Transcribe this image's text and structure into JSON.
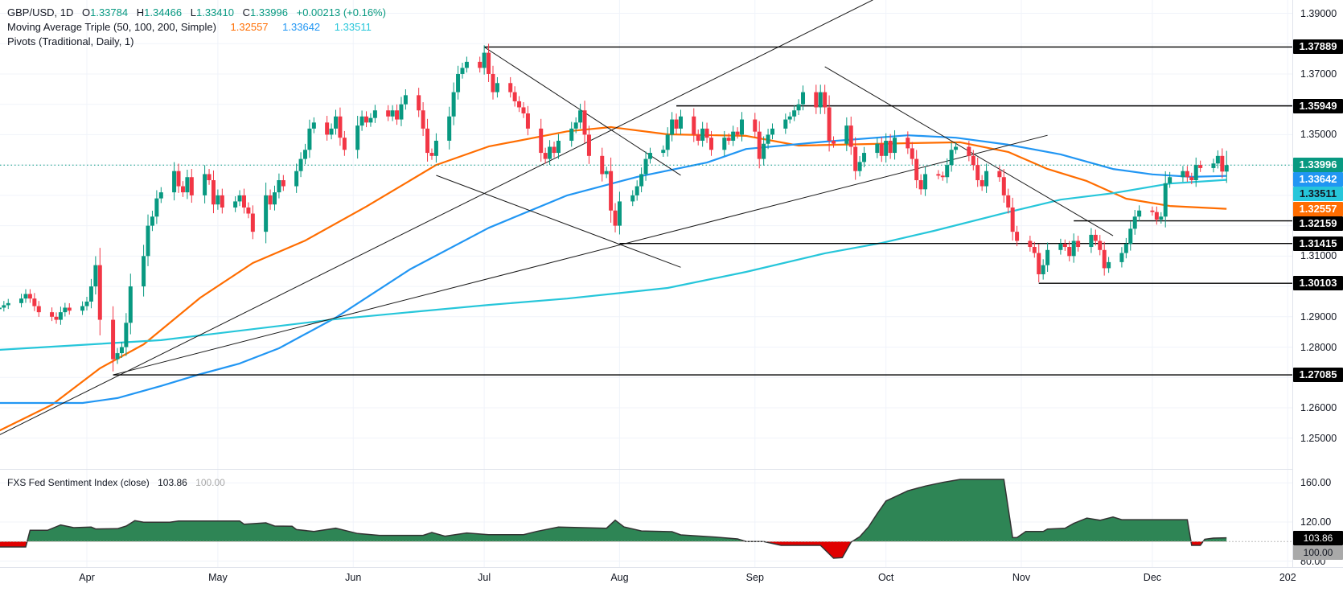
{
  "legend": {
    "symbol": "GBP/USD, 1D",
    "ohlc": [
      {
        "key": "O",
        "value": "1.33784"
      },
      {
        "key": "H",
        "value": "1.34466"
      },
      {
        "key": "L",
        "value": "1.33410"
      },
      {
        "key": "C",
        "value": "1.33996"
      }
    ],
    "change": "+0.00213 (+0.16%)",
    "ma_label": "Moving Average Triple (50, 100, 200, Simple)",
    "ma_values": [
      "1.32557",
      "1.33642",
      "1.33511"
    ],
    "pivots_label": "Pivots (Traditional, Daily, 1)"
  },
  "colors": {
    "up": "#089981",
    "down": "#f23645",
    "ma50": "#ff6d00",
    "ma100": "#2196f3",
    "ma200": "#26c6da",
    "sentiment_up": "#2e8555",
    "sentiment_down": "#e00000"
  },
  "price_axis": {
    "labels": [
      "1.39000",
      "1.37000",
      "1.35000",
      "1.31000",
      "1.29000",
      "1.28000",
      "1.26000",
      "1.25000"
    ],
    "tags": [
      {
        "value": "1.37889",
        "bg": "#000000",
        "fg": "#ffffff"
      },
      {
        "value": "1.35949",
        "bg": "#000000",
        "fg": "#ffffff"
      },
      {
        "value": "1.33996",
        "bg": "#089981",
        "fg": "#ffffff"
      },
      {
        "value": "1.33642",
        "bg": "#2196f3",
        "fg": "#ffffff"
      },
      {
        "value": "1.33511",
        "bg": "#26c6da",
        "fg": "#131722"
      },
      {
        "value": "1.32557",
        "bg": "#ff6d00",
        "fg": "#ffffff"
      },
      {
        "value": "1.32159",
        "bg": "#000000",
        "fg": "#ffffff"
      },
      {
        "value": "1.31415",
        "bg": "#000000",
        "fg": "#ffffff"
      },
      {
        "value": "1.30103",
        "bg": "#000000",
        "fg": "#ffffff"
      },
      {
        "value": "1.27085",
        "bg": "#000000",
        "fg": "#ffffff"
      }
    ]
  },
  "time_axis": [
    {
      "label": "Apr",
      "date": "2025-04-01"
    },
    {
      "label": "May",
      "date": "2025-05-01"
    },
    {
      "label": "Jun",
      "date": "2025-06-01"
    },
    {
      "label": "Jul",
      "date": "2025-07-01"
    },
    {
      "label": "Aug",
      "date": "2025-08-01"
    },
    {
      "label": "Sep",
      "date": "2025-09-01"
    },
    {
      "label": "Oct",
      "date": "2025-10-01"
    },
    {
      "label": "Nov",
      "date": "2025-11-01"
    },
    {
      "label": "Dec",
      "date": "2025-12-01"
    },
    {
      "label": "202",
      "date": "2026-01-01"
    }
  ],
  "sentiment_panel": {
    "title": "FXS Fed Sentiment Index (close)",
    "value": "103.86",
    "baseline_value": "100.00",
    "axis_labels": [
      "160.00",
      "120.00",
      "80.00"
    ],
    "tags": [
      {
        "value": "103.86",
        "bg": "#000000",
        "fg": "#ffffff"
      },
      {
        "value": "100.00",
        "bg": "#a9a9a9",
        "fg": "#131722"
      }
    ]
  },
  "chart_data": [
    {
      "type": "candlestick",
      "title": "GBP/USD, 1D",
      "ylim": [
        1.245,
        1.395
      ],
      "grid": true,
      "close": [
        1.293,
        1.2938,
        1.2945,
        1.296,
        1.2975,
        1.296,
        1.2935,
        1.2915,
        1.29,
        1.289,
        1.2915,
        1.293,
        1.292,
        1.2935,
        1.295,
        1.3,
        1.307,
        1.289,
        1.276,
        1.278,
        1.28,
        1.288,
        1.3,
        1.31,
        1.32,
        1.323,
        1.329,
        1.331,
        1.338,
        1.333,
        1.331,
        1.336,
        1.33,
        1.337,
        1.335,
        1.327,
        1.33,
        1.326,
        1.328,
        1.33,
        1.326,
        1.324,
        1.318,
        1.33,
        1.327,
        1.331,
        1.335,
        1.333,
        1.338,
        1.342,
        1.345,
        1.352,
        1.354,
        1.35,
        1.352,
        1.356,
        1.349,
        1.345,
        1.353,
        1.356,
        1.354,
        1.3555,
        1.358,
        1.356,
        1.358,
        1.355,
        1.36,
        1.363,
        1.358,
        1.352,
        1.344,
        1.343,
        1.348,
        1.356,
        1.364,
        1.37,
        1.372,
        1.374,
        1.372,
        1.377,
        1.37,
        1.364,
        1.367,
        1.364,
        1.361,
        1.359,
        1.357,
        1.352,
        1.344,
        1.342,
        1.346,
        1.344,
        1.348,
        1.352,
        1.354,
        1.358,
        1.35,
        1.343,
        1.337,
        1.338,
        1.325,
        1.32,
        1.328,
        1.33,
        1.333,
        1.337,
        1.342,
        1.344,
        1.345,
        1.35,
        1.355,
        1.352,
        1.356,
        1.35,
        1.348,
        1.352,
        1.349,
        1.345,
        1.349,
        1.348,
        1.351,
        1.35,
        1.355,
        1.351,
        1.342,
        1.347,
        1.35,
        1.352,
        1.355,
        1.356,
        1.358,
        1.36,
        1.364,
        1.359,
        1.364,
        1.359,
        1.348,
        1.347,
        1.353,
        1.346,
        1.338,
        1.341,
        1.344,
        1.347,
        1.343,
        1.348,
        1.344,
        1.349,
        1.3455,
        1.342,
        1.335,
        1.332,
        1.337,
        1.3365,
        1.336,
        1.34,
        1.345,
        1.346,
        1.343,
        1.34,
        1.335,
        1.333,
        1.338,
        1.336,
        1.33,
        1.326,
        1.318,
        1.315,
        1.313,
        1.311,
        1.304,
        1.307,
        1.312,
        1.314,
        1.313,
        1.31,
        1.315,
        1.313,
        1.317,
        1.315,
        1.312,
        1.306,
        1.308,
        1.311,
        1.314,
        1.319,
        1.323,
        1.325,
        1.3245,
        1.322,
        1.323,
        1.334,
        1.336,
        1.338,
        1.336,
        1.335,
        1.34,
        1.339,
        1.3405,
        1.343,
        1.33784,
        1.33996
      ],
      "last": {
        "open": 1.33784,
        "high": 1.34466,
        "low": 1.3341,
        "close": 1.33996
      },
      "moving_averages": [
        {
          "name": "50",
          "color": "#ff6d00",
          "points": [
            [
              "2025-03-12",
              1.2525
            ],
            [
              "2025-03-24",
              1.261
            ],
            [
              "2025-04-04",
              1.273
            ],
            [
              "2025-04-14",
              1.2809
            ],
            [
              "2025-04-27",
              1.2963
            ],
            [
              "2025-05-09",
              1.3077
            ],
            [
              "2025-05-21",
              1.3151
            ],
            [
              "2025-06-04",
              1.3263
            ],
            [
              "2025-06-20",
              1.34
            ],
            [
              "2025-07-02",
              1.3461
            ],
            [
              "2025-07-20",
              1.3511
            ],
            [
              "2025-07-30",
              1.3525
            ],
            [
              "2025-08-12",
              1.3501
            ],
            [
              "2025-08-30",
              1.3496
            ],
            [
              "2025-09-11",
              1.3464
            ],
            [
              "2025-10-06",
              1.3472
            ],
            [
              "2025-10-18",
              1.3475
            ],
            [
              "2025-10-29",
              1.3443
            ],
            [
              "2025-11-07",
              1.3387
            ],
            [
              "2025-11-16",
              1.3347
            ],
            [
              "2025-11-25",
              1.3289
            ],
            [
              "2025-12-05",
              1.3265
            ],
            [
              "2025-12-18",
              1.32557
            ]
          ]
        },
        {
          "name": "100",
          "color": "#2196f3",
          "points": [
            [
              "2025-03-12",
              1.2616
            ],
            [
              "2025-03-31",
              1.2616
            ],
            [
              "2025-04-08",
              1.2632
            ],
            [
              "2025-04-18",
              1.2672
            ],
            [
              "2025-04-27",
              1.2711
            ],
            [
              "2025-05-06",
              1.2746
            ],
            [
              "2025-05-15",
              1.2796
            ],
            [
              "2025-05-28",
              1.2897
            ],
            [
              "2025-06-14",
              1.3056
            ],
            [
              "2025-07-02",
              1.3193
            ],
            [
              "2025-07-20",
              1.33
            ],
            [
              "2025-08-05",
              1.3361
            ],
            [
              "2025-08-21",
              1.3408
            ],
            [
              "2025-08-30",
              1.3453
            ],
            [
              "2025-09-17",
              1.3477
            ],
            [
              "2025-10-06",
              1.3498
            ],
            [
              "2025-10-17",
              1.349
            ],
            [
              "2025-10-29",
              1.3467
            ],
            [
              "2025-11-10",
              1.3435
            ],
            [
              "2025-11-22",
              1.3387
            ],
            [
              "2025-12-01",
              1.3369
            ],
            [
              "2025-12-10",
              1.3361
            ],
            [
              "2025-12-18",
              1.33642
            ]
          ]
        },
        {
          "name": "200",
          "color": "#26c6da",
          "points": [
            [
              "2025-03-12",
              1.2791
            ],
            [
              "2025-04-18",
              1.2823
            ],
            [
              "2025-05-28",
              1.2892
            ],
            [
              "2025-06-14",
              1.2915
            ],
            [
              "2025-07-02",
              1.2939
            ],
            [
              "2025-07-20",
              1.296
            ],
            [
              "2025-08-12",
              1.2995
            ],
            [
              "2025-08-30",
              1.3048
            ],
            [
              "2025-09-17",
              1.3109
            ],
            [
              "2025-09-30",
              1.3143
            ],
            [
              "2025-10-12",
              1.3183
            ],
            [
              "2025-10-28",
              1.3241
            ],
            [
              "2025-11-10",
              1.3286
            ],
            [
              "2025-11-22",
              1.3307
            ],
            [
              "2025-12-05",
              1.3339
            ],
            [
              "2025-12-18",
              1.33511
            ]
          ]
        }
      ],
      "pivot_levels": [
        {
          "value": 1.37889,
          "from": "2025-07-01"
        },
        {
          "value": 1.35949,
          "from": "2025-08-14"
        },
        {
          "value": 1.32159,
          "from": "2025-11-13"
        },
        {
          "value": 1.31415,
          "from": "2025-08-01"
        },
        {
          "value": 1.30103,
          "from": "2025-11-05"
        },
        {
          "value": 1.27085,
          "from": "2025-04-07"
        }
      ],
      "trend_lines": [
        {
          "from": [
            "2025-03-12",
            1.2511
          ],
          "to": [
            "2025-09-28",
            1.3944
          ]
        },
        {
          "from": [
            "2025-04-07",
            1.27085
          ],
          "to": [
            "2025-11-07",
            1.3498
          ]
        },
        {
          "from": [
            "2025-06-20",
            1.3366
          ],
          "to": [
            "2025-08-15",
            1.3063
          ]
        },
        {
          "from": [
            "2025-07-01",
            1.37889
          ],
          "to": [
            "2025-08-15",
            1.3366
          ]
        },
        {
          "from": [
            "2025-09-17",
            1.3724
          ],
          "to": [
            "2025-11-22",
            1.3167
          ]
        }
      ]
    },
    {
      "type": "area",
      "title": "FXS Fed Sentiment Index (close)",
      "baseline": 100,
      "ylim": [
        75,
        170
      ],
      "points": [
        [
          "2025-03-12",
          94.5
        ],
        [
          "2025-03-18",
          94.5
        ],
        [
          "2025-03-19",
          111.5
        ],
        [
          "2025-03-23",
          111.5
        ],
        [
          "2025-03-26",
          117
        ],
        [
          "2025-03-29",
          114.2
        ],
        [
          "2025-04-02",
          114.8
        ],
        [
          "2025-04-03",
          112.9
        ],
        [
          "2025-04-08",
          113.2
        ],
        [
          "2025-04-10",
          115.9
        ],
        [
          "2025-04-12",
          121.4
        ],
        [
          "2025-04-14",
          119.8
        ],
        [
          "2025-04-20",
          119.8
        ],
        [
          "2025-04-22",
          121.1
        ],
        [
          "2025-05-06",
          121.1
        ],
        [
          "2025-05-07",
          117.8
        ],
        [
          "2025-05-12",
          119.2
        ],
        [
          "2025-05-14",
          115.9
        ],
        [
          "2025-05-18",
          115.6
        ],
        [
          "2025-05-19",
          112.3
        ],
        [
          "2025-05-23",
          110.4
        ],
        [
          "2025-05-28",
          113.7
        ],
        [
          "2025-06-02",
          108.2
        ],
        [
          "2025-06-07",
          106.3
        ],
        [
          "2025-06-17",
          106.3
        ],
        [
          "2025-06-19",
          109.3
        ],
        [
          "2025-06-22",
          105.5
        ],
        [
          "2025-06-27",
          108.8
        ],
        [
          "2025-07-02",
          107.1
        ],
        [
          "2025-07-10",
          107.1
        ],
        [
          "2025-07-13",
          110.4
        ],
        [
          "2025-07-18",
          114.8
        ],
        [
          "2025-07-29",
          113.7
        ],
        [
          "2025-07-31",
          121.9
        ],
        [
          "2025-08-02",
          115
        ],
        [
          "2025-08-06",
          110.9
        ],
        [
          "2025-08-13",
          110.1
        ],
        [
          "2025-08-15",
          106.8
        ],
        [
          "2025-08-23",
          104.6
        ],
        [
          "2025-08-28",
          102.7
        ],
        [
          "2025-08-30",
          100.1
        ],
        [
          "2025-09-03",
          100
        ],
        [
          "2025-09-07",
          96.1
        ],
        [
          "2025-09-16",
          96.1
        ],
        [
          "2025-09-19",
          83
        ],
        [
          "2025-09-21",
          83.5
        ],
        [
          "2025-09-23",
          99.4
        ],
        [
          "2025-09-25",
          104.9
        ],
        [
          "2025-09-27",
          115
        ],
        [
          "2025-09-29",
          128.6
        ],
        [
          "2025-10-01",
          141.5
        ],
        [
          "2025-10-06",
          151.9
        ],
        [
          "2025-10-10",
          156.8
        ],
        [
          "2025-10-14",
          160.6
        ],
        [
          "2025-10-18",
          163.6
        ],
        [
          "2025-10-28",
          163.6
        ],
        [
          "2025-10-30",
          104
        ],
        [
          "2025-10-31",
          104
        ],
        [
          "2025-11-02",
          110.3
        ],
        [
          "2025-11-06",
          110.3
        ],
        [
          "2025-11-07",
          112.8
        ],
        [
          "2025-11-11",
          113.6
        ],
        [
          "2025-11-13",
          118.6
        ],
        [
          "2025-11-16",
          124
        ],
        [
          "2025-11-19",
          121.8
        ],
        [
          "2025-11-22",
          125.1
        ],
        [
          "2025-11-24",
          122.4
        ],
        [
          "2025-12-09",
          122.4
        ],
        [
          "2025-12-10",
          96.1
        ],
        [
          "2025-12-12",
          96.1
        ],
        [
          "2025-12-13",
          102.4
        ],
        [
          "2025-12-15",
          103.5
        ],
        [
          "2025-12-18",
          103.86
        ]
      ]
    }
  ]
}
